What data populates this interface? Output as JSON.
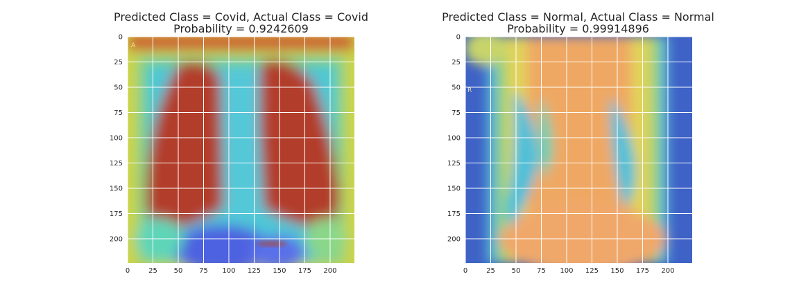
{
  "chart_data": [
    {
      "type": "heatmap",
      "title_line1": "Predicted Class = Covid, Actual Class = Covid",
      "title_line2": "Probability = 0.9242609",
      "predicted_class": "Covid",
      "actual_class": "Covid",
      "probability": 0.9242609,
      "colormap": "jet overlay on chest X-ray",
      "image_size": [
        224,
        224
      ],
      "xlim": [
        0,
        224
      ],
      "ylim": [
        224,
        0
      ],
      "xticks": [
        0,
        25,
        50,
        75,
        100,
        125,
        150,
        175,
        200
      ],
      "yticks": [
        0,
        25,
        50,
        75,
        100,
        125,
        150,
        175,
        200
      ],
      "grid": true,
      "image_label": "A"
    },
    {
      "type": "heatmap",
      "title_line1": "Predicted Class = Normal, Actual Class = Normal",
      "title_line2": "Probability = 0.99914896",
      "predicted_class": "Normal",
      "actual_class": "Normal",
      "probability": 0.99914896,
      "colormap": "jet overlay on chest X-ray",
      "image_size": [
        224,
        224
      ],
      "xlim": [
        0,
        224
      ],
      "ylim": [
        224,
        0
      ],
      "xticks": [
        0,
        25,
        50,
        75,
        100,
        125,
        150,
        175,
        200
      ],
      "yticks": [
        0,
        25,
        50,
        75,
        100,
        125,
        150,
        175,
        200
      ],
      "grid": true,
      "image_label": "R"
    }
  ]
}
